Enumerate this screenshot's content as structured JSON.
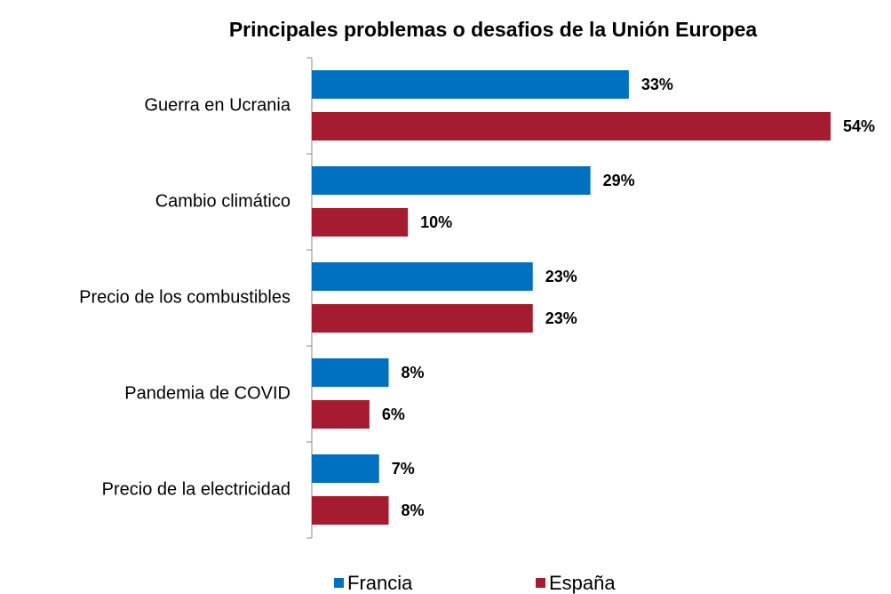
{
  "chart_data": {
    "type": "hbar",
    "title": "Principales problemas o desafios de la Unión Europea",
    "categories": [
      "Guerra en Ucrania",
      "Cambio climático",
      "Precio de los combustibles",
      "Pandemia de COVID",
      "Precio de la electricidad"
    ],
    "series": [
      {
        "name": "Francia",
        "color": "#0070c0",
        "values": [
          33,
          29,
          23,
          8,
          7
        ],
        "value_labels": [
          "33%",
          "29%",
          "23%",
          "8%",
          "7%"
        ]
      },
      {
        "name": "España",
        "color": "#a51c30",
        "values": [
          54,
          10,
          23,
          6,
          8
        ],
        "value_labels": [
          "54%",
          "10%",
          "23%",
          "6%",
          "8%"
        ]
      }
    ],
    "legend": "bottom"
  }
}
